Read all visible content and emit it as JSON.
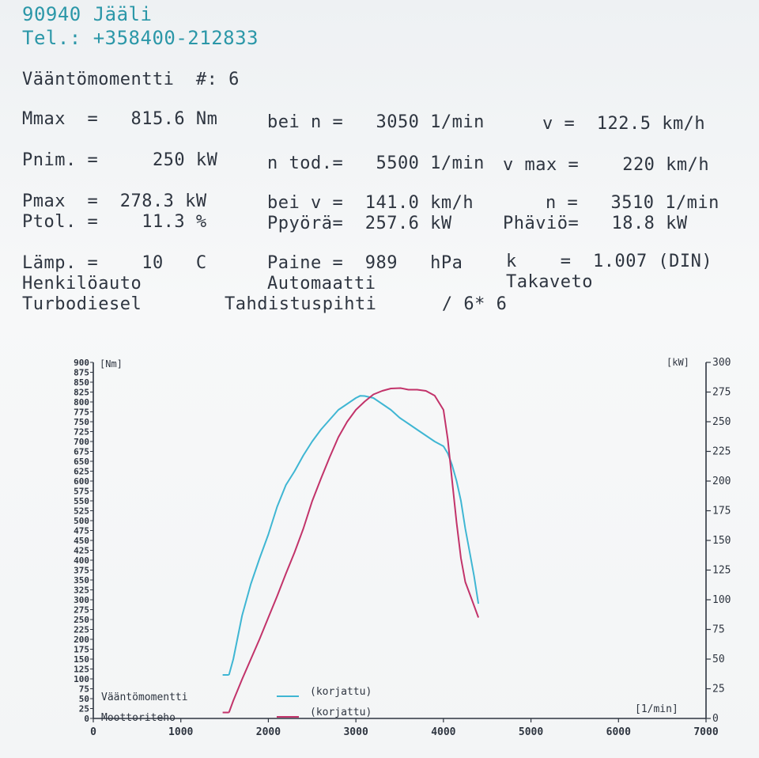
{
  "header": {
    "address": "90940 Jääli",
    "phone": "Tel.: +358400-212833"
  },
  "report": {
    "title": "Vääntömomentti  #: 6",
    "rows": [
      [
        "Mmax  =   815.6 Nm",
        "bei n =   3050 1/min",
        "v =  122.5 km/h"
      ],
      [
        "Pnim. =     250 kW",
        "n tod.=   5500 1/min",
        "v max =    220 km/h"
      ],
      [
        "Pmax  =  278.3 kW",
        "bei v =  141.0 km/h",
        "n =   3510 1/min"
      ],
      [
        "Ptol. =    11.3 %",
        "Ppyörä=  257.6 kW",
        "Phäviö=   18.8 kW"
      ],
      [
        "Lämp. =    10   C",
        "Paine =  989   hPa",
        "k    =  1.007 (DIN)"
      ],
      [
        "Henkilöauto",
        "Automaatti",
        "Takaveto"
      ],
      [
        "Turbodiesel",
        "Tahdistuspihti      / 6* 6",
        ""
      ]
    ]
  },
  "colors": {
    "torque": "#3fb6d3",
    "power": "#c2336a",
    "text_teal": "#2b97a8",
    "text_dark": "#2e3540"
  },
  "chart_data": {
    "type": "line",
    "xlabel": "[1/min]",
    "ylabel_left": "[Nm]",
    "ylabel_right": "[kW]",
    "xlim": [
      0,
      7000
    ],
    "ylim_left": [
      0,
      900
    ],
    "ylim_right": [
      0,
      300
    ],
    "x_ticks": [
      "0",
      "1000",
      "2000",
      "3000",
      "4000",
      "5000",
      "6000",
      "7000"
    ],
    "y_right_ticks": [
      "300",
      "275",
      "250",
      "225",
      "200",
      "175",
      "150",
      "125",
      "100",
      "75",
      "50",
      "25",
      "0"
    ],
    "y_left_ticks": [
      "900",
      "875",
      "850",
      "825",
      "800",
      "775",
      "750",
      "725",
      "700",
      "675",
      "650",
      "625",
      "600",
      "575",
      "550",
      "525",
      "500",
      "475",
      "450",
      "425",
      "400",
      "375",
      "350",
      "325",
      "300",
      "275",
      "250",
      "225",
      "200",
      "175",
      "150",
      "125",
      "100",
      "75",
      "50",
      "25",
      "0"
    ],
    "legend": [
      {
        "label": "Vääntömomentti",
        "note": "(korjattu)"
      },
      {
        "label": "Moottoriteho",
        "note": "(korjattu)"
      }
    ],
    "series": [
      {
        "name": "Vääntömomentti",
        "axis": "left",
        "x": [
          1550,
          1600,
          1700,
          1800,
          1900,
          2000,
          2100,
          2200,
          2300,
          2400,
          2500,
          2600,
          2700,
          2800,
          2900,
          3000,
          3050,
          3100,
          3200,
          3300,
          3400,
          3500,
          3600,
          3700,
          3800,
          3900,
          4000,
          4050,
          4100,
          4150,
          4200,
          4250,
          4300,
          4350,
          4400
        ],
        "y": [
          110,
          150,
          260,
          340,
          405,
          465,
          535,
          590,
          625,
          665,
          700,
          730,
          755,
          780,
          795,
          810,
          815.6,
          815,
          810,
          795,
          780,
          760,
          745,
          730,
          715,
          700,
          688,
          670,
          640,
          600,
          550,
          480,
          420,
          360,
          290
        ]
      },
      {
        "name": "Moottoriteho",
        "axis": "right",
        "x": [
          1550,
          1600,
          1700,
          1800,
          1900,
          2000,
          2100,
          2200,
          2300,
          2400,
          2500,
          2600,
          2700,
          2800,
          2900,
          3000,
          3100,
          3200,
          3300,
          3400,
          3510,
          3600,
          3700,
          3800,
          3900,
          4000,
          4050,
          4100,
          4150,
          4200,
          4250,
          4300,
          4350,
          4400
        ],
        "y": [
          5,
          15,
          33,
          50,
          67,
          85,
          103,
          122,
          140,
          160,
          183,
          202,
          220,
          237,
          250,
          260,
          267,
          273,
          276,
          278,
          278.3,
          277,
          277,
          276,
          272,
          260,
          235,
          200,
          165,
          135,
          115,
          105,
          95,
          85
        ]
      }
    ]
  }
}
